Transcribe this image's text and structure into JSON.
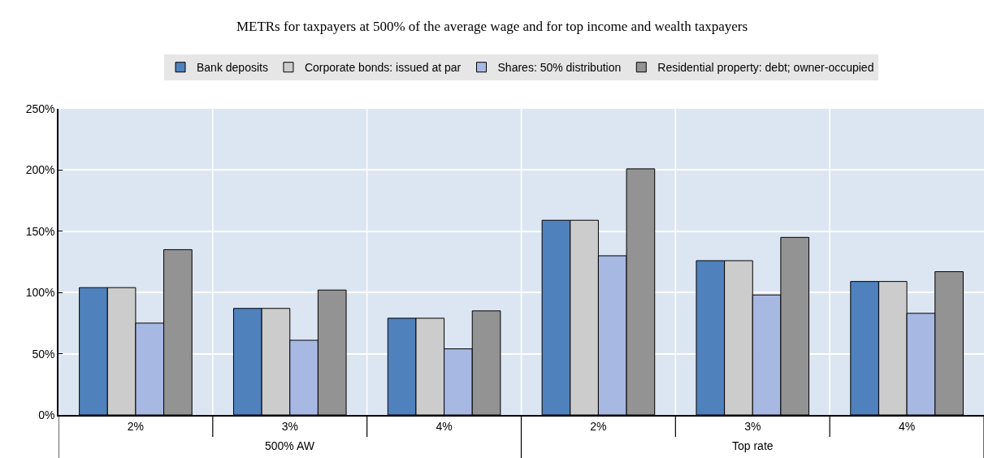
{
  "chart_data": {
    "type": "bar",
    "title": "METRs for taxpayers at 500% of the average wage and for top income and wealth taxpayers",
    "categories": [
      "2%",
      "3%",
      "4%",
      "2%",
      "3%",
      "4%"
    ],
    "series": [
      {
        "name": "Bank deposits",
        "color": "#4f81bd",
        "values": [
          104,
          87,
          79,
          159,
          126,
          109
        ]
      },
      {
        "name": "Corporate bonds: issued at par",
        "color": "#cccccc",
        "values": [
          104,
          87,
          79,
          159,
          126,
          109
        ]
      },
      {
        "name": "Shares: 50% distribution",
        "color": "#a7b8e3",
        "values": [
          75,
          61,
          54,
          130,
          98,
          83
        ]
      },
      {
        "name": "Residential property: debt; owner-occupied",
        "color": "#939393",
        "values": [
          135,
          102,
          85,
          201,
          145,
          117
        ]
      }
    ],
    "ylim": [
      0,
      250
    ],
    "yticks": [
      {
        "value": 0,
        "label": "0%"
      },
      {
        "value": 50,
        "label": "50%"
      },
      {
        "value": 100,
        "label": "100%"
      },
      {
        "value": 150,
        "label": "150%"
      },
      {
        "value": 200,
        "label": "200%"
      },
      {
        "value": 250,
        "label": "250%"
      }
    ],
    "annotations": [
      "500% AW",
      "Top rate"
    ],
    "grid": true,
    "legend": "top"
  }
}
